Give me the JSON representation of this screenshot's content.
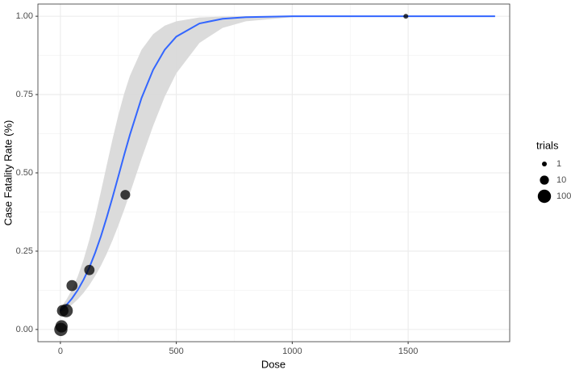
{
  "chart_data": {
    "type": "scatter",
    "x_label": "Dose",
    "y_label": "Case Fatality Rate (%)",
    "xlim": [
      -97,
      1938
    ],
    "ylim": [
      -0.039,
      1.039
    ],
    "xticks": [
      0,
      500,
      1000,
      1500
    ],
    "yticks": [
      {
        "value": 0,
        "label": "0.00"
      },
      {
        "value": 0.25,
        "label": "0.25"
      },
      {
        "value": 0.5,
        "label": "0.50"
      },
      {
        "value": 0.75,
        "label": "0.75"
      },
      {
        "value": 1,
        "label": "1.00"
      }
    ],
    "grid": true,
    "points": {
      "color": "#000000",
      "x": [
        2,
        5,
        10,
        25,
        50,
        125,
        280,
        1490
      ],
      "y": [
        0.0,
        0.01,
        0.06,
        0.06,
        0.14,
        0.19,
        0.43,
        1.0
      ],
      "trials": [
        100,
        60,
        40,
        100,
        30,
        20,
        15,
        1
      ]
    },
    "fit": {
      "color": "#3366ff",
      "band_color": "#d9d9d9",
      "x": [
        0,
        25,
        50,
        75,
        100,
        125,
        150,
        175,
        200,
        225,
        250,
        275,
        300,
        350,
        400,
        450,
        500,
        600,
        700,
        800,
        1000,
        1250,
        1500,
        1875
      ],
      "y": [
        0.06,
        0.077,
        0.099,
        0.126,
        0.159,
        0.198,
        0.245,
        0.298,
        0.358,
        0.422,
        0.489,
        0.557,
        0.622,
        0.739,
        0.829,
        0.893,
        0.935,
        0.977,
        0.992,
        0.997,
        1.0,
        1.0,
        1.0,
        1.0
      ],
      "lower": [
        0.052,
        0.064,
        0.079,
        0.096,
        0.117,
        0.142,
        0.171,
        0.204,
        0.242,
        0.285,
        0.332,
        0.382,
        0.435,
        0.545,
        0.65,
        0.743,
        0.818,
        0.915,
        0.963,
        0.984,
        0.997,
        1.0,
        1.0,
        1.0
      ],
      "upper": [
        0.069,
        0.094,
        0.127,
        0.17,
        0.223,
        0.287,
        0.36,
        0.441,
        0.525,
        0.608,
        0.685,
        0.753,
        0.81,
        0.893,
        0.943,
        0.97,
        0.984,
        0.996,
        0.999,
        1.0,
        1.0,
        1.0,
        1.0,
        1.0
      ]
    },
    "size_legend": {
      "title": "trials",
      "values": [
        1,
        10,
        100
      ]
    }
  }
}
